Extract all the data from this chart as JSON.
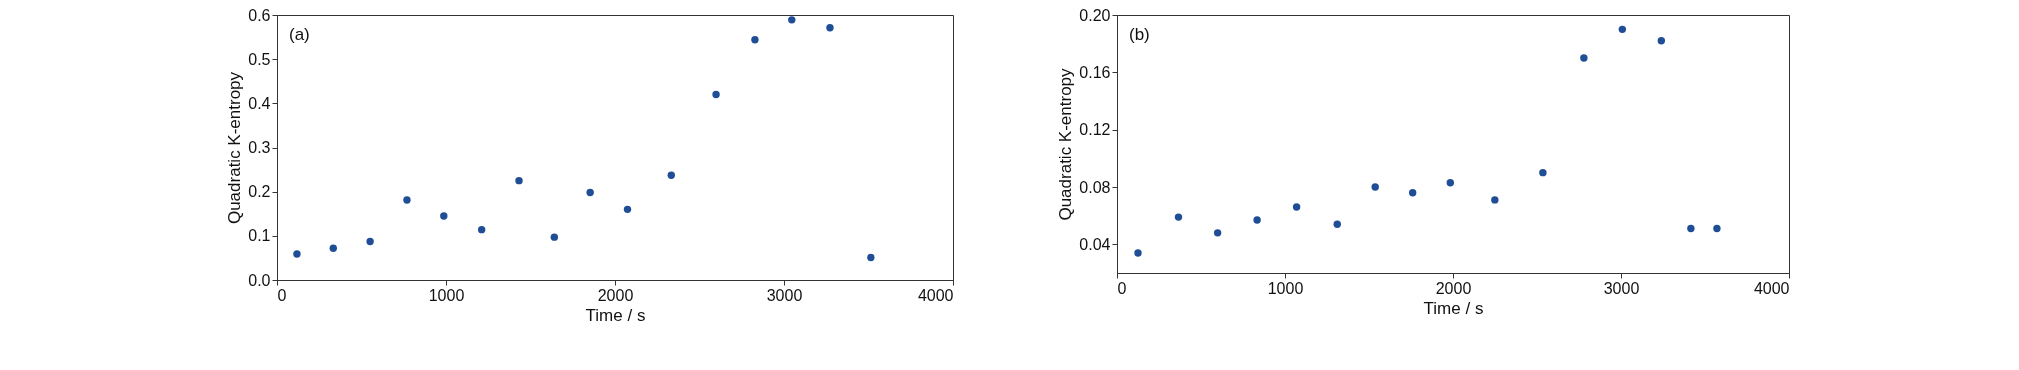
{
  "chart_data": [
    {
      "type": "scatter",
      "xlabel": "Time / s",
      "ylabel": "Quadratic K-entropy",
      "annotations": [
        "(a)"
      ],
      "marker": "circle",
      "grid": false,
      "x": [
        118,
        333,
        551,
        769,
        987,
        1211,
        1432,
        1641,
        1853,
        2074,
        2333,
        2598,
        2828,
        3046,
        3272,
        3514
      ],
      "series": [
        {
          "color": "#1f4e96",
          "values": [
            0.059,
            0.072,
            0.087,
            0.181,
            0.145,
            0.114,
            0.225,
            0.097,
            0.198,
            0.16,
            0.237,
            0.42,
            0.544,
            0.589,
            0.571,
            0.051
          ]
        }
      ],
      "xlim": [
        0,
        4000
      ],
      "xticks": [
        0,
        1000,
        2000,
        3000,
        4000
      ],
      "ylim": [
        0,
        0.6
      ],
      "yticks": [
        {
          "value": 0,
          "label": "0.0"
        },
        0.1,
        0.2,
        0.3,
        0.4,
        0.5,
        0.6
      ]
    },
    {
      "type": "scatter",
      "xlabel": "Time / s",
      "ylabel": "Quadratic K-entropy",
      "annotations": [
        "(b)"
      ],
      "marker": "circle",
      "grid": false,
      "x": [
        125,
        366,
        599,
        834,
        1069,
        1311,
        1537,
        1760,
        1984,
        2249,
        2535,
        2779,
        3008,
        3240,
        3416,
        3571
      ],
      "series": [
        {
          "color": "#1f4e96",
          "values": [
            0.034,
            0.059,
            0.048,
            0.057,
            0.066,
            0.054,
            0.08,
            0.076,
            0.083,
            0.071,
            0.09,
            0.17,
            0.19,
            0.182,
            0.051,
            0.051
          ]
        }
      ],
      "xlim": [
        0,
        4000
      ],
      "xticks": [
        0,
        1000,
        2000,
        3000,
        4000
      ],
      "ylim": [
        0.02,
        0.2
      ],
      "yticks": [
        0.04,
        0.08,
        0.12,
        0.16,
        {
          "value": 0.2,
          "label": "0.20"
        }
      ]
    }
  ]
}
